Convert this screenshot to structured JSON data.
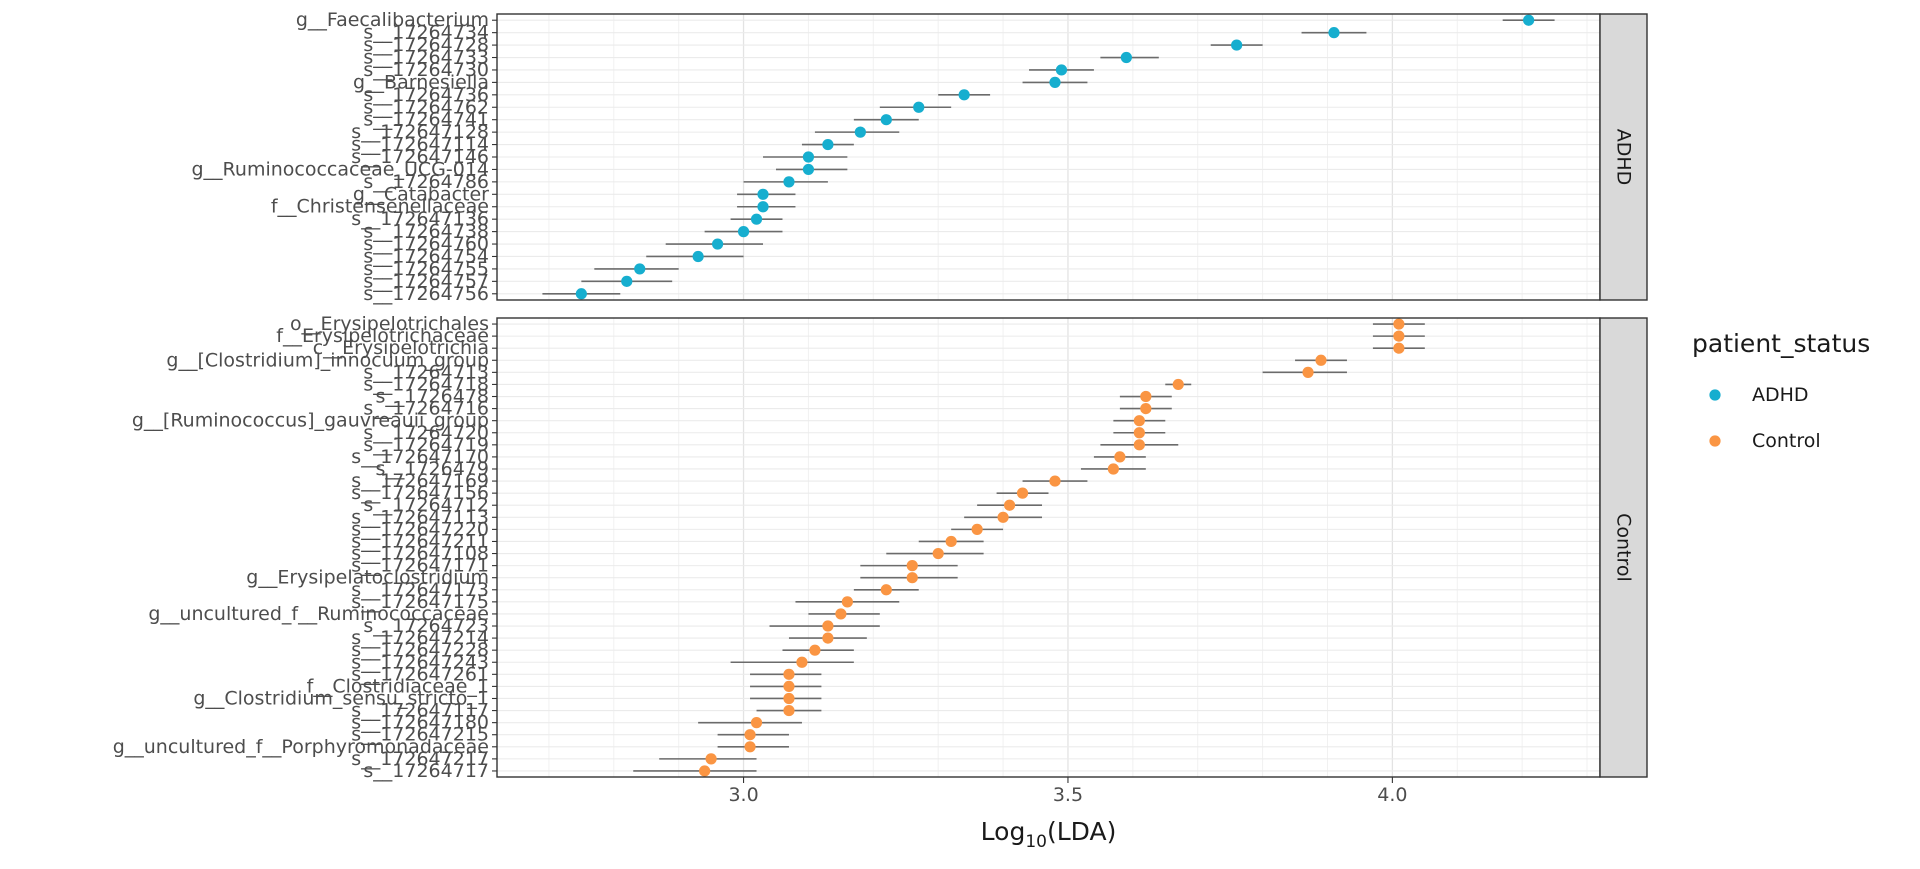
{
  "chart_data": {
    "type": "scatter",
    "subtype": "dot-with-error-bars (LEfSe)",
    "xlabel_base": "Log",
    "xlabel_sub": "10",
    "xlabel_tail": "(LDA)",
    "xlim": [
      2.62,
      4.32
    ],
    "x_ticks": [
      "3.0",
      "3.5",
      "4.0"
    ],
    "x_tick_values": [
      3.0,
      3.5,
      4.0
    ],
    "grid": true,
    "legend": {
      "title": "patient_status",
      "placement": "right",
      "items": [
        {
          "label": "ADHD",
          "color": "#16AECF"
        },
        {
          "label": "Control",
          "color": "#FA9543"
        }
      ]
    },
    "panels": [
      {
        "strip": "ADHD",
        "color": "#16AECF",
        "labels": [
          "g__Faecalibacterium",
          "s__17264734",
          "s__17264728",
          "s__17264733",
          "s__17264730",
          "g__Barnesiella",
          "s__17264736",
          "s__17264762",
          "s__17264741",
          "s__172647128",
          "s__172647114",
          "s__172647146",
          "g__Ruminococcaceae_UCG-014",
          "s__17264786",
          "g__Catabacter",
          "f__Christensenellaceae",
          "s__172647136",
          "s__17264738",
          "s__17264760",
          "s__17264754",
          "s__17264755",
          "s__17264757",
          "s__17264756"
        ],
        "values": [
          4.21,
          3.91,
          3.76,
          3.59,
          3.49,
          3.48,
          3.34,
          3.27,
          3.22,
          3.18,
          3.13,
          3.1,
          3.1,
          3.07,
          3.03,
          3.03,
          3.02,
          3.0,
          2.96,
          2.93,
          2.84,
          2.82,
          2.75
        ],
        "err_low": [
          4.17,
          3.86,
          3.72,
          3.55,
          3.44,
          3.43,
          3.3,
          3.21,
          3.17,
          3.11,
          3.09,
          3.03,
          3.05,
          3.0,
          2.99,
          2.99,
          2.98,
          2.94,
          2.88,
          2.85,
          2.77,
          2.75,
          2.69
        ],
        "err_high": [
          4.25,
          3.96,
          3.8,
          3.64,
          3.54,
          3.53,
          3.38,
          3.32,
          3.27,
          3.24,
          3.17,
          3.16,
          3.16,
          3.13,
          3.08,
          3.08,
          3.06,
          3.06,
          3.03,
          3.0,
          2.9,
          2.89,
          2.81
        ]
      },
      {
        "strip": "Control",
        "color": "#FA9543",
        "labels": [
          "o__Erysipelotrichales",
          "f__Erysipelotrichaceae",
          "c__Erysipelotrichia",
          "g__[Clostridium]_innocuum_group",
          "s__17264713",
          "s__17264718",
          "s__1726478",
          "s__17264716",
          "g__[Ruminococcus]_gauvreauii_group",
          "s__17264720",
          "s__17264719",
          "s__172647170",
          "s__1726479",
          "s__172647169",
          "s__172647156",
          "s__17264712",
          "s__172647113",
          "s__172647220",
          "s__172647211",
          "s__172647108",
          "s__172647171",
          "g__Erysipelatoclostridium",
          "s__172647173",
          "s__172647175",
          "g__uncultured_f__Ruminococcaceae",
          "s__17264723",
          "s__172647214",
          "s__172647228",
          "s__172647243",
          "s__172647261",
          "f__Clostridiaceae_1",
          "g__Clostridium_sensu_stricto_1",
          "s__172647117",
          "s__172647180",
          "s__172647215",
          "g__uncultured_f__Porphyromonadaceae",
          "s__172647217",
          "s__17264717"
        ],
        "values": [
          4.01,
          4.01,
          4.01,
          3.89,
          3.87,
          3.67,
          3.62,
          3.62,
          3.61,
          3.61,
          3.61,
          3.58,
          3.57,
          3.48,
          3.43,
          3.41,
          3.4,
          3.36,
          3.32,
          3.3,
          3.26,
          3.26,
          3.22,
          3.16,
          3.15,
          3.13,
          3.13,
          3.11,
          3.09,
          3.07,
          3.07,
          3.07,
          3.07,
          3.02,
          3.01,
          3.01,
          2.95,
          2.94
        ],
        "err_low": [
          3.97,
          3.97,
          3.97,
          3.85,
          3.8,
          3.65,
          3.58,
          3.58,
          3.57,
          3.57,
          3.55,
          3.54,
          3.52,
          3.43,
          3.39,
          3.36,
          3.34,
          3.32,
          3.27,
          3.22,
          3.18,
          3.18,
          3.17,
          3.08,
          3.1,
          3.04,
          3.07,
          3.06,
          2.98,
          3.01,
          3.01,
          3.01,
          3.02,
          2.93,
          2.96,
          2.96,
          2.87,
          2.83
        ],
        "err_high": [
          4.05,
          4.05,
          4.05,
          3.93,
          3.93,
          3.69,
          3.66,
          3.66,
          3.65,
          3.65,
          3.67,
          3.62,
          3.62,
          3.53,
          3.47,
          3.46,
          3.46,
          3.4,
          3.37,
          3.37,
          3.33,
          3.33,
          3.27,
          3.24,
          3.21,
          3.21,
          3.19,
          3.17,
          3.17,
          3.12,
          3.12,
          3.12,
          3.12,
          3.09,
          3.07,
          3.07,
          3.02,
          3.02
        ]
      }
    ]
  }
}
